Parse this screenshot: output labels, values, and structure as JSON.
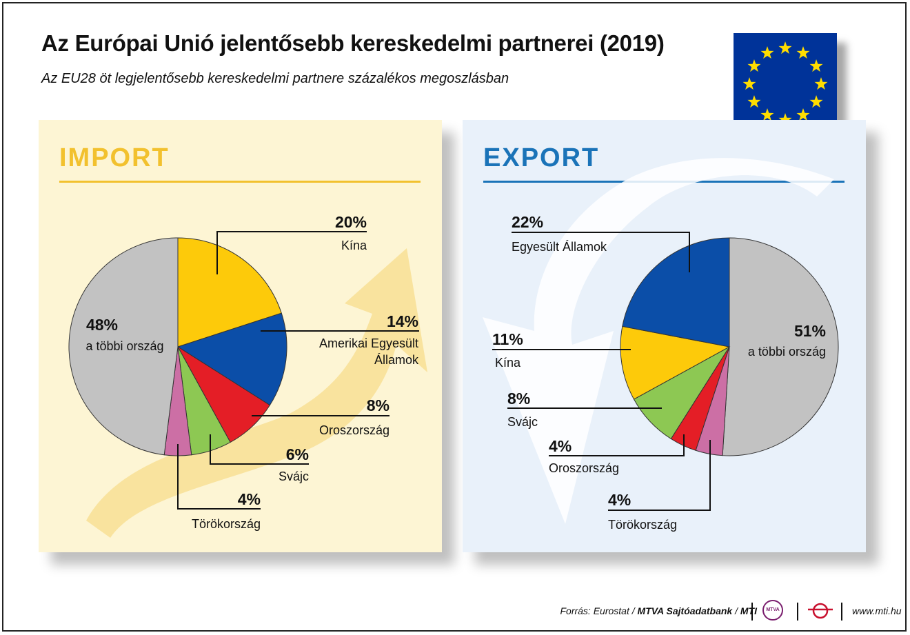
{
  "title": "Az Európai Unió jelentősebb kereskedelmi partnerei (2019)",
  "subtitle": "Az EU28 öt legjelentősebb kereskedelmi partnere százalékos megoszlásban",
  "colors": {
    "china": "#fdca0a",
    "usa": "#0b4ea8",
    "russia": "#e41e26",
    "switzerland": "#8dc853",
    "turkey": "#cc6fa5",
    "others": "#c2c2c2",
    "import_accent": "#f2c12e",
    "export_accent": "#1a73b8",
    "flag_blue": "#003399",
    "flag_star": "#ffdd00"
  },
  "icons": [
    "eu-flag-icon",
    "import-arrow-icon",
    "export-arrow-icon",
    "mtva-logo-icon",
    "mti-logo-icon"
  ],
  "chart_data": [
    {
      "type": "pie",
      "heading": "IMPORT",
      "slices": [
        {
          "key": "china",
          "percent_label": "20%",
          "label": "Kína",
          "value": 20,
          "color": "#fdca0a"
        },
        {
          "key": "usa",
          "percent_label": "14%",
          "label": "Amerikai Egyesült Államok",
          "value": 14,
          "color": "#0b4ea8"
        },
        {
          "key": "russia",
          "percent_label": "8%",
          "label": "Oroszország",
          "value": 8,
          "color": "#e41e26"
        },
        {
          "key": "switzerland",
          "percent_label": "6%",
          "label": "Svájc",
          "value": 6,
          "color": "#8dc853"
        },
        {
          "key": "turkey",
          "percent_label": "4%",
          "label": "Törökország",
          "value": 4,
          "color": "#cc6fa5"
        },
        {
          "key": "others",
          "percent_label": "48%",
          "label": "a többi ország",
          "value": 48,
          "color": "#c2c2c2"
        }
      ]
    },
    {
      "type": "pie",
      "heading": "EXPORT",
      "slices": [
        {
          "key": "others",
          "percent_label": "51%",
          "label": "a többi ország",
          "value": 51,
          "color": "#c2c2c2"
        },
        {
          "key": "turkey",
          "percent_label": "4%",
          "label": "Törökország",
          "value": 4,
          "color": "#cc6fa5"
        },
        {
          "key": "russia",
          "percent_label": "4%",
          "label": "Oroszország",
          "value": 4,
          "color": "#e41e26"
        },
        {
          "key": "switzerland",
          "percent_label": "8%",
          "label": "Svájc",
          "value": 8,
          "color": "#8dc853"
        },
        {
          "key": "china",
          "percent_label": "11%",
          "label": "Kína",
          "value": 11,
          "color": "#fdca0a"
        },
        {
          "key": "usa",
          "percent_label": "22%",
          "label": "Egyesült Államok",
          "value": 22,
          "color": "#0b4ea8"
        }
      ]
    }
  ],
  "footer": {
    "source_prefix": "Forrás: Eurostat / ",
    "source_bold": "MTVA Sajtóadatbank",
    "source_sep": " / ",
    "source_mti": "MTI",
    "mtva_logo_text": "MTVA",
    "url": "www.mti.hu"
  }
}
